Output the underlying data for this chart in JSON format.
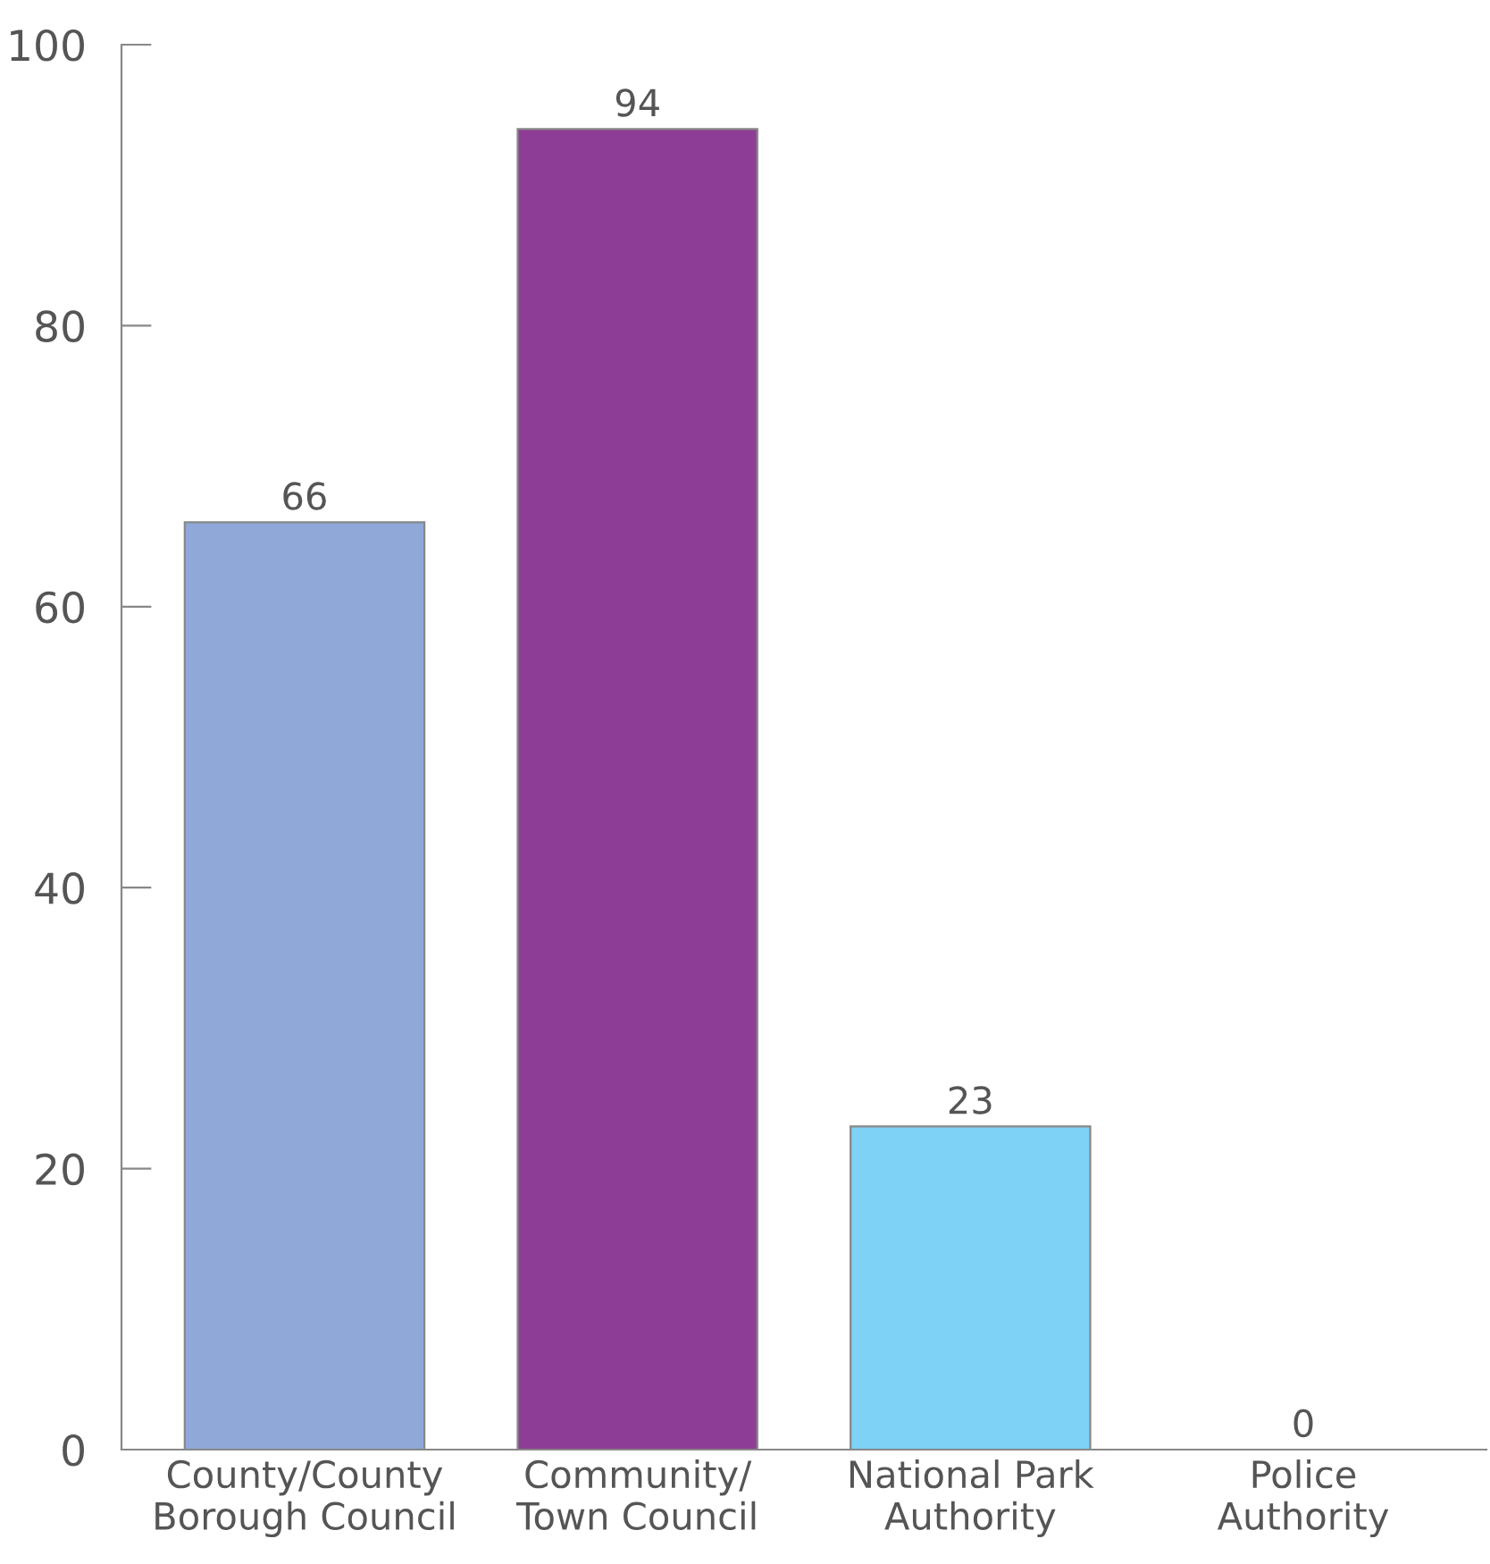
{
  "chart_data": {
    "type": "bar",
    "categories": [
      "County/County\nBorough Council",
      "Community/\nTown Council",
      "National Park\nAuthority",
      "Police\nAuthority"
    ],
    "values": [
      66,
      94,
      23,
      0
    ],
    "colors": [
      "#8fa8d8",
      "#8e3d96",
      "#7dd2f5",
      "#888888"
    ],
    "ylim": [
      0,
      100
    ],
    "yticks": [
      0,
      20,
      40,
      60,
      80,
      100
    ],
    "data_labels": true,
    "grid": false,
    "legend": false
  }
}
